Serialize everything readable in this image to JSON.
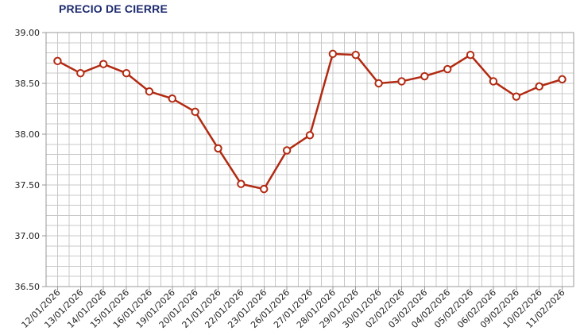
{
  "chart_data": {
    "type": "line",
    "title": "PRECIO DE CIERRE",
    "xlabel": "",
    "ylabel": "",
    "ylim": [
      36.5,
      39.0
    ],
    "yticks": [
      "36.50",
      "37.00",
      "37.50",
      "38.00",
      "38.50",
      "39.00"
    ],
    "grid": true,
    "legend": "none",
    "colors": {
      "line": "#b22a12",
      "marker_fill": "#ffffff",
      "grid": "#c8c8c8",
      "axis": "#999999",
      "tick_text": "#222222",
      "title": "#1c2a6e"
    },
    "categories": [
      "12/01/2026",
      "13/01/2026",
      "14/01/2026",
      "15/01/2026",
      "16/01/2026",
      "19/01/2026",
      "20/01/2026",
      "21/01/2026",
      "22/01/2026",
      "23/01/2026",
      "26/01/2026",
      "27/01/2026",
      "28/01/2026",
      "29/01/2026",
      "30/01/2026",
      "02/02/2026",
      "03/02/2026",
      "04/02/2026",
      "05/02/2026",
      "06/02/2026",
      "09/02/2026",
      "10/02/2026",
      "11/02/2026"
    ],
    "series": [
      {
        "values": [
          38.72,
          38.6,
          38.69,
          38.6,
          38.42,
          38.35,
          38.22,
          37.86,
          37.51,
          37.46,
          37.84,
          37.99,
          38.79,
          38.78,
          38.5,
          38.52,
          38.57,
          38.64,
          38.78,
          38.52,
          38.37,
          38.47,
          38.54
        ]
      }
    ]
  }
}
